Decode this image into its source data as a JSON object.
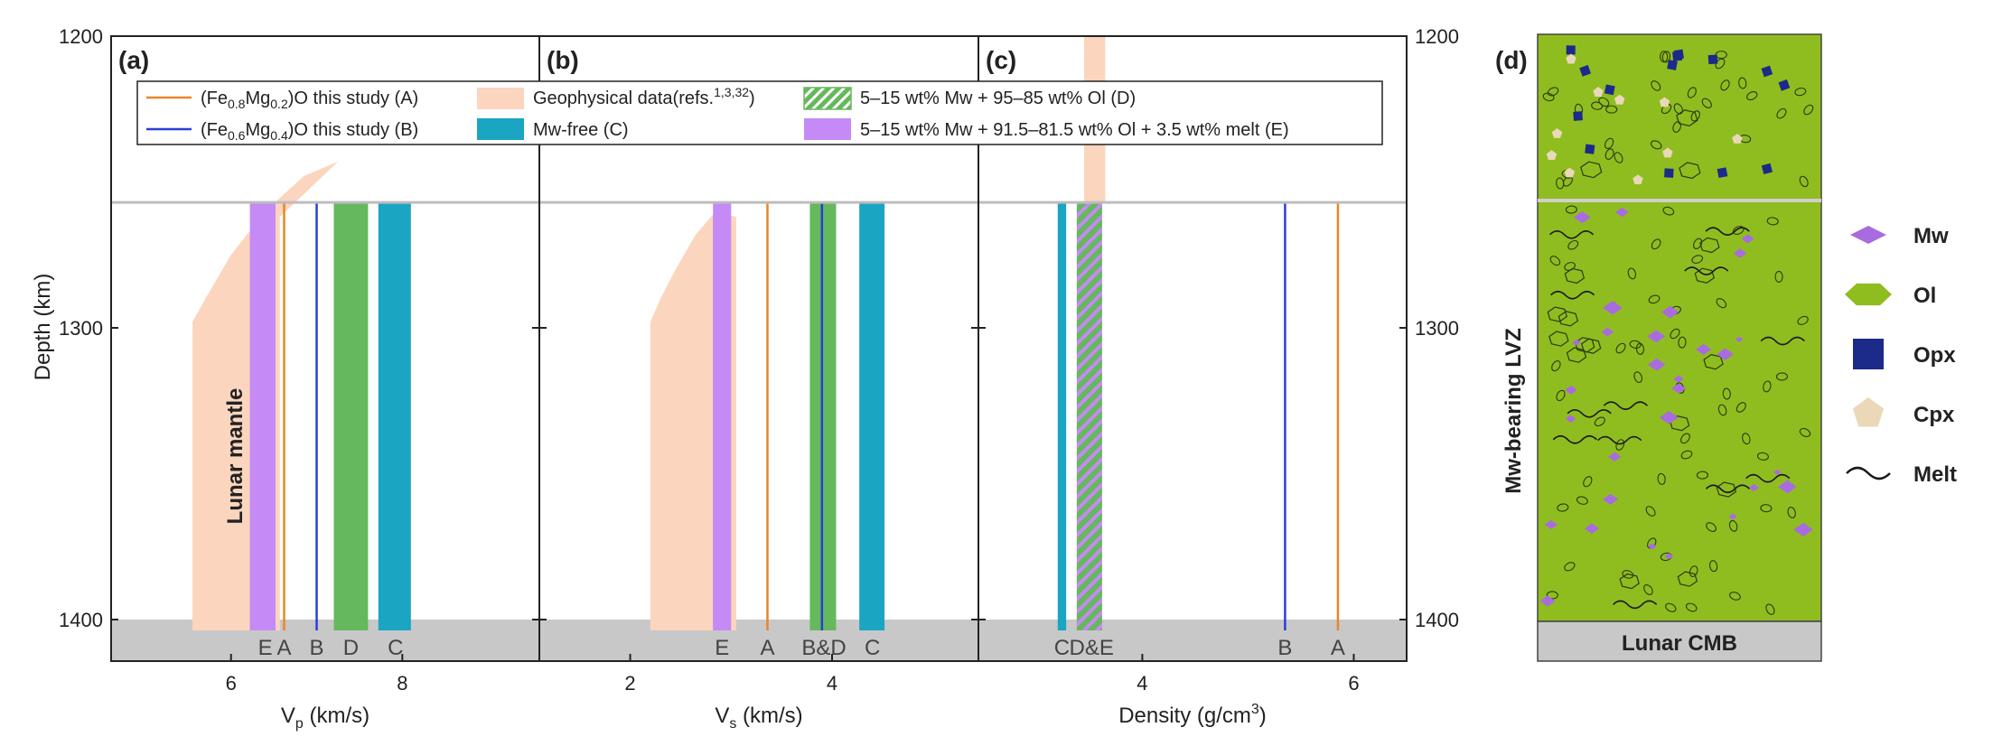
{
  "chart_data": [
    {
      "type": "bar",
      "panel": "(a)",
      "xlabel_main": "V",
      "xlabel_sub": "p",
      "xlabel_unit": " (km/s)",
      "ylabel": "Depth (km)",
      "ylim": [
        1200,
        1400
      ],
      "xticks": [
        6,
        8
      ],
      "xlim": [
        4.6,
        9.6
      ],
      "inner_label": "Lunar mantle",
      "bars": [
        {
          "label": "E",
          "x0": 6.22,
          "x1": 6.52,
          "kind": "purple"
        },
        {
          "label": "D",
          "x0": 7.2,
          "x1": 7.6,
          "kind": "green"
        },
        {
          "label": "C",
          "x0": 7.72,
          "x1": 8.1,
          "kind": "teal"
        }
      ],
      "lines": [
        {
          "label": "A",
          "x": 6.62,
          "kind": "orange"
        },
        {
          "label": "B",
          "x": 7.0,
          "kind": "blue"
        }
      ],
      "letters": [
        {
          "t": "E",
          "x": 6.4
        },
        {
          "t": "A",
          "x": 6.62
        },
        {
          "t": "B",
          "x": 7.0
        },
        {
          "t": "D",
          "x": 7.4
        },
        {
          "t": "C",
          "x": 7.92
        }
      ],
      "geophysical": {
        "depths": [
          1243,
          1248,
          1260,
          1275,
          1290,
          1298,
          1400
        ],
        "vmax": [
          7.25,
          6.85,
          6.4,
          6.0,
          5.7,
          5.55,
          5.55
        ]
      }
    },
    {
      "type": "bar",
      "panel": "(b)",
      "xlabel_main": "V",
      "xlabel_sub": "s",
      "xlabel_unit": " (km/s)",
      "ylim": [
        1200,
        1400
      ],
      "xticks": [
        2,
        4
      ],
      "xlim": [
        1.1,
        5.45
      ],
      "bars": [
        {
          "label": "E",
          "x0": 2.82,
          "x1": 3.0,
          "kind": "purple"
        },
        {
          "label": "D",
          "x0": 3.78,
          "x1": 4.04,
          "kind": "green"
        },
        {
          "label": "C",
          "x0": 4.27,
          "x1": 4.52,
          "kind": "teal"
        }
      ],
      "lines": [
        {
          "label": "A",
          "x": 3.36,
          "kind": "orange"
        },
        {
          "label": "B",
          "x": 3.9,
          "kind": "blue"
        }
      ],
      "letters": [
        {
          "t": "E",
          "x": 2.91
        },
        {
          "t": "A",
          "x": 3.36
        },
        {
          "t": "B&D",
          "x": 3.92
        },
        {
          "t": "C",
          "x": 4.4
        }
      ],
      "geophysical": {
        "depths": [
          1260,
          1268,
          1280,
          1290,
          1298,
          1400
        ],
        "vmax": [
          2.85,
          2.65,
          2.45,
          2.3,
          2.2,
          2.2
        ]
      }
    },
    {
      "type": "bar",
      "panel": "(c)",
      "xlabel_main": "Density (g/cm",
      "xlabel_sup": "3",
      "xlabel_unit": ")",
      "ylabel_right": "Depth (km)",
      "ylim": [
        1200,
        1400
      ],
      "xticks": [
        4,
        6
      ],
      "xlim": [
        2.45,
        6.5
      ],
      "bars": [
        {
          "label": "C",
          "x0": 3.2,
          "x1": 3.28,
          "kind": "teal"
        },
        {
          "label": "D&E",
          "x0": 3.38,
          "x1": 3.62,
          "kind": "hatch"
        }
      ],
      "lines": [
        {
          "label": "B",
          "x": 5.35,
          "kind": "blue"
        },
        {
          "label": "A",
          "x": 5.85,
          "kind": "orange"
        }
      ],
      "letters": [
        {
          "t": "C",
          "x": 3.24
        },
        {
          "t": "D&E",
          "x": 3.52
        },
        {
          "t": "B",
          "x": 5.35
        },
        {
          "t": "A",
          "x": 5.85
        }
      ],
      "geophysical_band": {
        "x0": 3.45,
        "x1": 3.65
      }
    }
  ],
  "legend": [
    {
      "kind": "orange",
      "pre": "(Fe",
      "s1": "0.8",
      "mid": "Mg",
      "s2": "0.2",
      "post": ")O this study (A)"
    },
    {
      "kind": "blue",
      "pre": "(Fe",
      "s1": "0.6",
      "mid": "Mg",
      "s2": "0.4",
      "post": ")O this study (B)"
    },
    {
      "kind": "peach",
      "text": "Geophysical data(refs.",
      "sup": "1,3,32",
      "post": ")"
    },
    {
      "kind": "teal",
      "text": "Mw-free (C)"
    },
    {
      "kind": "hatch",
      "text": "5–15 wt% Mw + 95–85 wt% Ol (D)"
    },
    {
      "kind": "purple",
      "text": "5–15 wt% Mw + 91.5–81.5 wt% Ol + 3.5 wt% melt (E)"
    }
  ],
  "shared_ticks": {
    "depth": [
      "1200",
      "1300",
      "1400"
    ]
  },
  "panel_d": {
    "label": "(d)",
    "side_label": "Mw-bearing LVZ",
    "bottom_label": "Lunar CMB",
    "legend": [
      {
        "name": "Mw",
        "icon": "diamond"
      },
      {
        "name": "Ol",
        "icon": "hexagon"
      },
      {
        "name": "Opx",
        "icon": "square"
      },
      {
        "name": "Cpx",
        "icon": "pentagon"
      },
      {
        "name": "Melt",
        "icon": "wave"
      }
    ]
  },
  "colors": {
    "orange": "#e8862a",
    "blue": "#2a3fd6",
    "peach": "#fbd5bd",
    "teal": "#1aa5c2",
    "green": "#66b85c",
    "purple": "#c58af5",
    "grey": "#c8c8c8",
    "lvz_green": "#8fbd1f",
    "navy": "#1c2a8a",
    "cpx": "#ead8b8"
  }
}
